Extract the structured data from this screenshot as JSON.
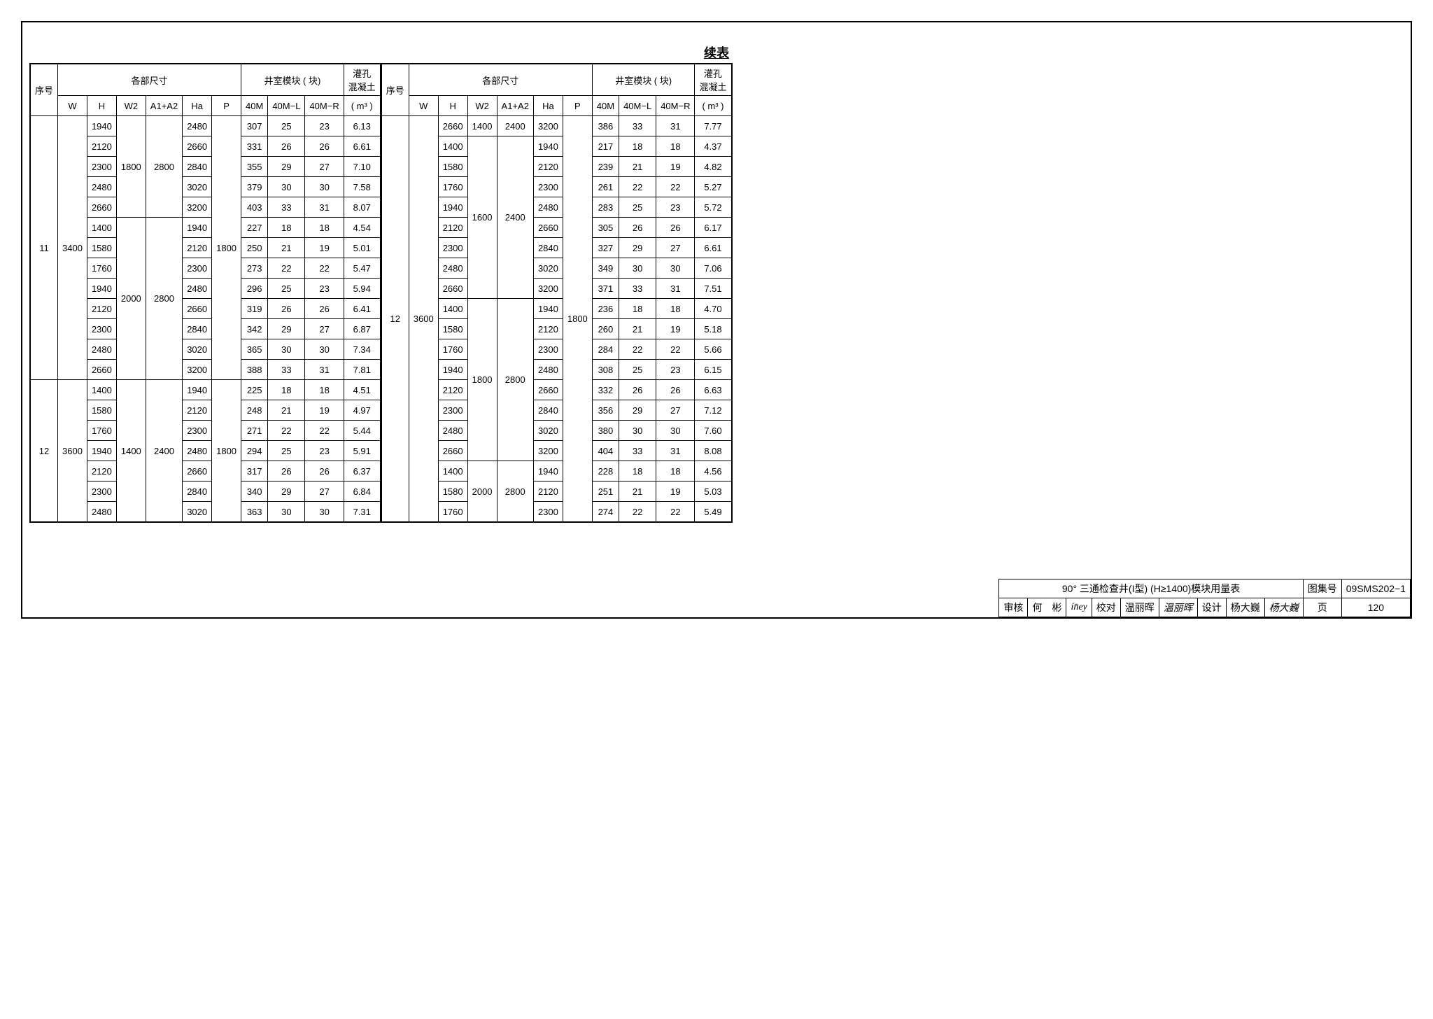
{
  "continuation_label": "续表",
  "header": {
    "seq": "序号",
    "dimensions": "各部尺寸",
    "module_blocks": "井室模块 ( 块)",
    "grout": "灌孔",
    "concrete": "混凝土",
    "W": "W",
    "H": "H",
    "W2": "W2",
    "A1A2": "A1+A2",
    "Ha": "Ha",
    "P": "P",
    "M40": "40M",
    "M40L": "40M−L",
    "M40R": "40M−R",
    "m3": "( m³ )"
  },
  "left": {
    "groups": [
      {
        "seq": "11",
        "W": "3400",
        "subgroups": [
          {
            "W2": "1800",
            "A1A2": "2800",
            "rows": [
              {
                "H": "1940",
                "Ha": "2480",
                "M40": "307",
                "M40L": "25",
                "M40R": "23",
                "m3": "6.13"
              },
              {
                "H": "2120",
                "Ha": "2660",
                "M40": "331",
                "M40L": "26",
                "M40R": "26",
                "m3": "6.61"
              },
              {
                "H": "2300",
                "Ha": "2840",
                "M40": "355",
                "M40L": "29",
                "M40R": "27",
                "m3": "7.10"
              },
              {
                "H": "2480",
                "Ha": "3020",
                "M40": "379",
                "M40L": "30",
                "M40R": "30",
                "m3": "7.58"
              },
              {
                "H": "2660",
                "Ha": "3200",
                "M40": "403",
                "M40L": "33",
                "M40R": "31",
                "m3": "8.07"
              }
            ]
          },
          {
            "W2": "2000",
            "A1A2": "2800",
            "rows": [
              {
                "H": "1400",
                "Ha": "1940",
                "M40": "227",
                "M40L": "18",
                "M40R": "18",
                "m3": "4.54"
              },
              {
                "H": "1580",
                "Ha": "2120",
                "M40": "250",
                "M40L": "21",
                "M40R": "19",
                "m3": "5.01"
              },
              {
                "H": "1760",
                "Ha": "2300",
                "M40": "273",
                "M40L": "22",
                "M40R": "22",
                "m3": "5.47"
              },
              {
                "H": "1940",
                "Ha": "2480",
                "M40": "296",
                "M40L": "25",
                "M40R": "23",
                "m3": "5.94"
              },
              {
                "H": "2120",
                "Ha": "2660",
                "M40": "319",
                "M40L": "26",
                "M40R": "26",
                "m3": "6.41"
              },
              {
                "H": "2300",
                "Ha": "2840",
                "M40": "342",
                "M40L": "29",
                "M40R": "27",
                "m3": "6.87"
              },
              {
                "H": "2480",
                "Ha": "3020",
                "M40": "365",
                "M40L": "30",
                "M40R": "30",
                "m3": "7.34"
              },
              {
                "H": "2660",
                "Ha": "3200",
                "M40": "388",
                "M40L": "33",
                "M40R": "31",
                "m3": "7.81"
              }
            ]
          }
        ],
        "P": "1800"
      },
      {
        "seq": "12",
        "W": "3600",
        "subgroups": [
          {
            "W2": "1400",
            "A1A2": "2400",
            "rows": [
              {
                "H": "1400",
                "Ha": "1940",
                "M40": "225",
                "M40L": "18",
                "M40R": "18",
                "m3": "4.51"
              },
              {
                "H": "1580",
                "Ha": "2120",
                "M40": "248",
                "M40L": "21",
                "M40R": "19",
                "m3": "4.97"
              },
              {
                "H": "1760",
                "Ha": "2300",
                "M40": "271",
                "M40L": "22",
                "M40R": "22",
                "m3": "5.44"
              },
              {
                "H": "1940",
                "Ha": "2480",
                "M40": "294",
                "M40L": "25",
                "M40R": "23",
                "m3": "5.91"
              },
              {
                "H": "2120",
                "Ha": "2660",
                "M40": "317",
                "M40L": "26",
                "M40R": "26",
                "m3": "6.37"
              },
              {
                "H": "2300",
                "Ha": "2840",
                "M40": "340",
                "M40L": "29",
                "M40R": "27",
                "m3": "6.84"
              },
              {
                "H": "2480",
                "Ha": "3020",
                "M40": "363",
                "M40L": "30",
                "M40R": "30",
                "m3": "7.31"
              }
            ]
          }
        ],
        "P": "1800"
      }
    ]
  },
  "right": {
    "groups": [
      {
        "seq": "12",
        "W": "3600",
        "P": "1800",
        "subgroups": [
          {
            "W2": "1400",
            "A1A2": "2400",
            "rows": [
              {
                "H": "2660",
                "Ha": "3200",
                "M40": "386",
                "M40L": "33",
                "M40R": "31",
                "m3": "7.77"
              }
            ]
          },
          {
            "W2": "1600",
            "A1A2": "2400",
            "rows": [
              {
                "H": "1400",
                "Ha": "1940",
                "M40": "217",
                "M40L": "18",
                "M40R": "18",
                "m3": "4.37"
              },
              {
                "H": "1580",
                "Ha": "2120",
                "M40": "239",
                "M40L": "21",
                "M40R": "19",
                "m3": "4.82"
              },
              {
                "H": "1760",
                "Ha": "2300",
                "M40": "261",
                "M40L": "22",
                "M40R": "22",
                "m3": "5.27"
              },
              {
                "H": "1940",
                "Ha": "2480",
                "M40": "283",
                "M40L": "25",
                "M40R": "23",
                "m3": "5.72"
              },
              {
                "H": "2120",
                "Ha": "2660",
                "M40": "305",
                "M40L": "26",
                "M40R": "26",
                "m3": "6.17"
              },
              {
                "H": "2300",
                "Ha": "2840",
                "M40": "327",
                "M40L": "29",
                "M40R": "27",
                "m3": "6.61"
              },
              {
                "H": "2480",
                "Ha": "3020",
                "M40": "349",
                "M40L": "30",
                "M40R": "30",
                "m3": "7.06"
              },
              {
                "H": "2660",
                "Ha": "3200",
                "M40": "371",
                "M40L": "33",
                "M40R": "31",
                "m3": "7.51"
              }
            ]
          },
          {
            "W2": "1800",
            "A1A2": "2800",
            "rows": [
              {
                "H": "1400",
                "Ha": "1940",
                "M40": "236",
                "M40L": "18",
                "M40R": "18",
                "m3": "4.70"
              },
              {
                "H": "1580",
                "Ha": "2120",
                "M40": "260",
                "M40L": "21",
                "M40R": "19",
                "m3": "5.18"
              },
              {
                "H": "1760",
                "Ha": "2300",
                "M40": "284",
                "M40L": "22",
                "M40R": "22",
                "m3": "5.66"
              },
              {
                "H": "1940",
                "Ha": "2480",
                "M40": "308",
                "M40L": "25",
                "M40R": "23",
                "m3": "6.15"
              },
              {
                "H": "2120",
                "Ha": "2660",
                "M40": "332",
                "M40L": "26",
                "M40R": "26",
                "m3": "6.63"
              },
              {
                "H": "2300",
                "Ha": "2840",
                "M40": "356",
                "M40L": "29",
                "M40R": "27",
                "m3": "7.12"
              },
              {
                "H": "2480",
                "Ha": "3020",
                "M40": "380",
                "M40L": "30",
                "M40R": "30",
                "m3": "7.60"
              },
              {
                "H": "2660",
                "Ha": "3200",
                "M40": "404",
                "M40L": "33",
                "M40R": "31",
                "m3": "8.08"
              }
            ]
          },
          {
            "W2": "2000",
            "A1A2": "2800",
            "rows": [
              {
                "H": "1400",
                "Ha": "1940",
                "M40": "228",
                "M40L": "18",
                "M40R": "18",
                "m3": "4.56"
              },
              {
                "H": "1580",
                "Ha": "2120",
                "M40": "251",
                "M40L": "21",
                "M40R": "19",
                "m3": "5.03"
              },
              {
                "H": "1760",
                "Ha": "2300",
                "M40": "274",
                "M40L": "22",
                "M40R": "22",
                "m3": "5.49"
              }
            ]
          }
        ]
      }
    ]
  },
  "titleblock": {
    "title": "90° 三通检查井(I型) (H≥1400)模块用量表",
    "drawing_no_label": "图集号",
    "drawing_no": "09SMS202−1",
    "review_label": "审核",
    "review_name": "何　彬",
    "review_sig": "ín̄ey",
    "check_label": "校对",
    "check_name": "温丽晖",
    "check_sig": "温丽晖",
    "design_label": "设计",
    "design_name": "杨大巍",
    "design_sig": "杨大巍",
    "page_label": "页",
    "page_no": "120"
  }
}
